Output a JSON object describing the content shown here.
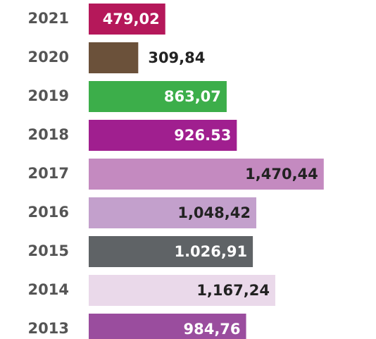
{
  "chart_data": {
    "type": "bar",
    "orientation": "horizontal",
    "categories": [
      "2021",
      "2020",
      "2019",
      "2018",
      "2017",
      "2016",
      "2015",
      "2014",
      "2013"
    ],
    "values": [
      479.02,
      309.84,
      863.07,
      926.53,
      1470.44,
      1048.42,
      1026.91,
      1167.24,
      984.76
    ],
    "value_labels": [
      "479,02",
      "309,84",
      "863,07",
      "926.53",
      "1,470,44",
      "1,048,42",
      "1.026,91",
      "1,167,24",
      "984,76"
    ],
    "colors": [
      "#b5185a",
      "#6b513a",
      "#3cae4a",
      "#a01f8f",
      "#c48ac0",
      "#c3a0cc",
      "#5f6366",
      "#ead9ea",
      "#9a4d9e"
    ]
  }
}
